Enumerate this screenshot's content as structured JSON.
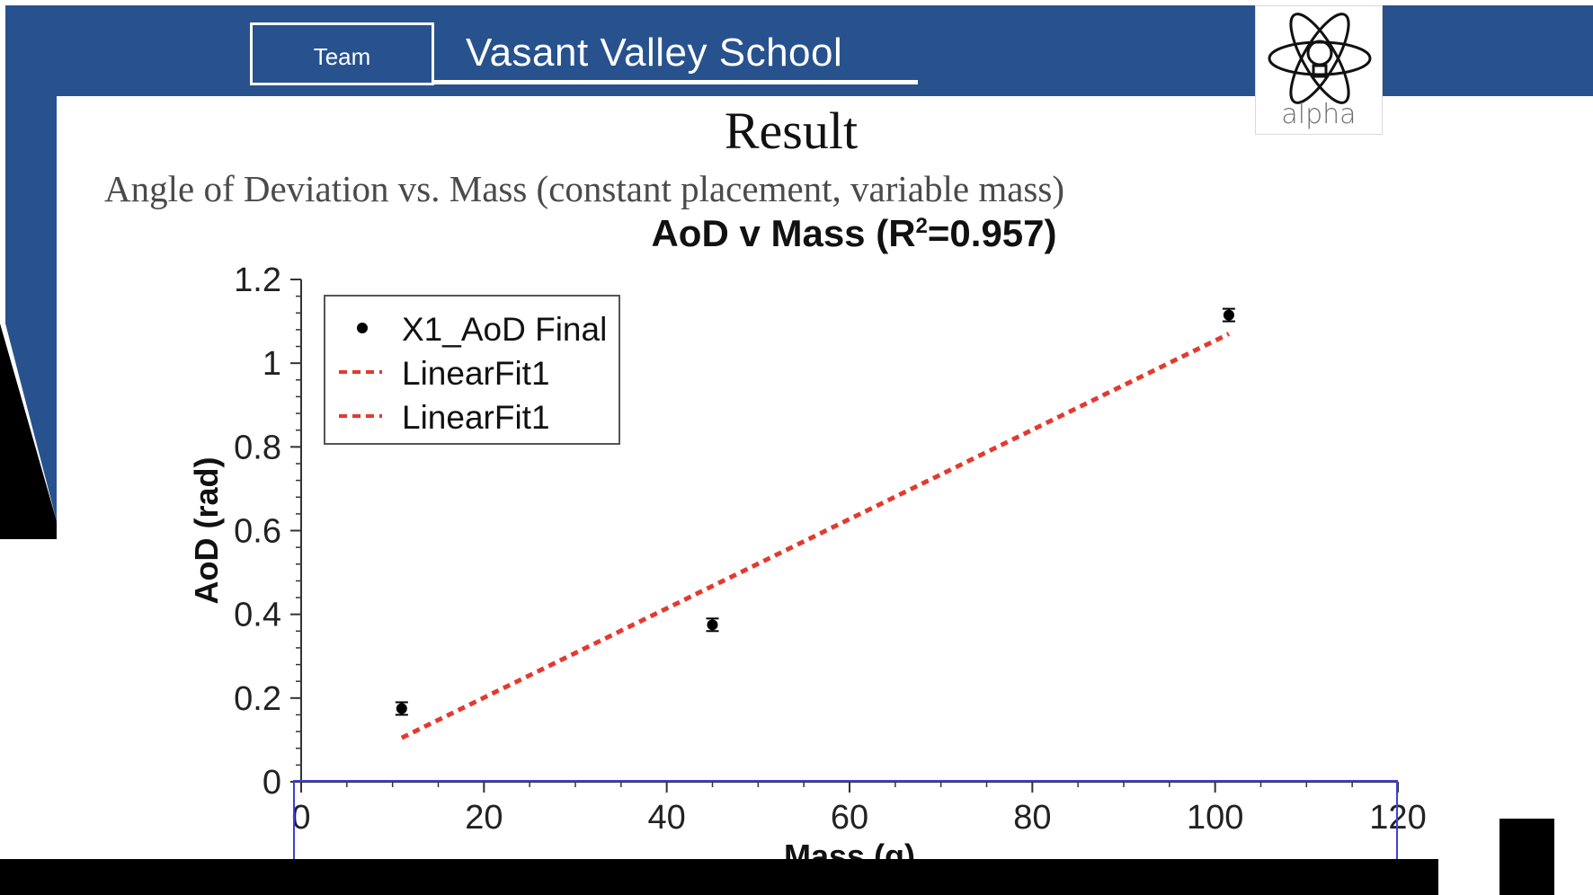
{
  "header": {
    "team_label": "Team",
    "school_name": "Vasant Valley School",
    "logo_text": "alpha",
    "brand_color": "#27528e"
  },
  "slide": {
    "heading": "Result",
    "subtitle": "Angle of Deviation vs. Mass (constant placement, variable mass)"
  },
  "chart_data": {
    "type": "scatter",
    "title_main": "AoD v Mass (R",
    "title_sup": "2",
    "title_end": "=0.957)",
    "xlabel": "Mass (g)",
    "ylabel": "AoD (rad)",
    "xlim": [
      0,
      120
    ],
    "ylim": [
      0,
      1.2
    ],
    "xticks": [
      0,
      20,
      40,
      60,
      80,
      100,
      120
    ],
    "xtick_labels": [
      "0",
      "20",
      "40",
      "60",
      "80",
      "100",
      "120"
    ],
    "yticks": [
      0,
      0.2,
      0.4,
      0.6,
      0.8,
      1.0,
      1.2
    ],
    "ytick_labels": [
      "0",
      "0.2",
      "0.4",
      "0.6",
      "0.8",
      "1",
      "1.2"
    ],
    "legend_position": "top-left",
    "grid": false,
    "series": [
      {
        "name": "X1_AoD Final",
        "kind": "points",
        "color": "#000000",
        "x": [
          11,
          45,
          101.5
        ],
        "y": [
          0.175,
          0.375,
          1.115
        ],
        "yerr": [
          0.015,
          0.015,
          0.015
        ]
      },
      {
        "name": "LinearFit1",
        "kind": "line",
        "color": "#e33a2f",
        "x": [
          11,
          101.5
        ],
        "y": [
          0.105,
          1.07
        ]
      },
      {
        "name": "LinearFit1",
        "kind": "line",
        "color": "#e33a2f",
        "x": [],
        "y": []
      }
    ]
  }
}
